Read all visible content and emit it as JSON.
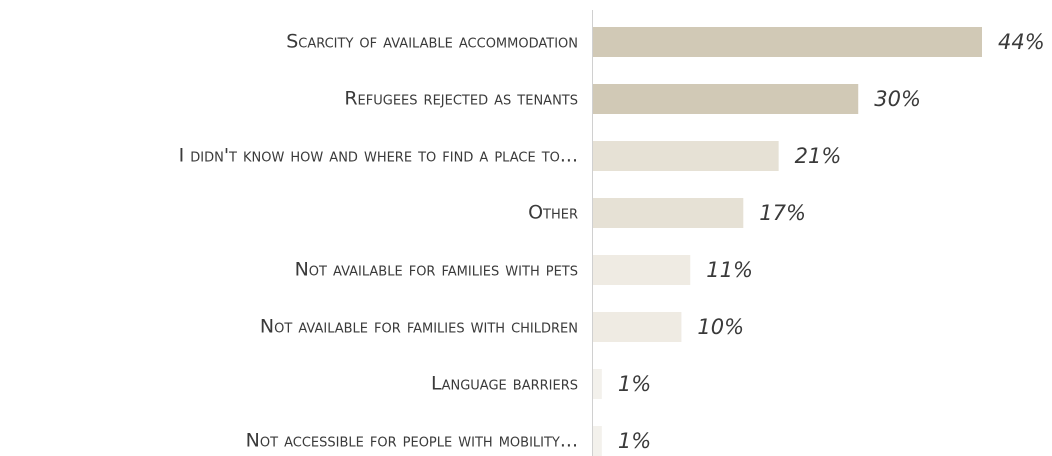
{
  "chart_data": {
    "type": "bar",
    "categories": [
      "Scarcity of available accommodation",
      "Refugees rejected as tenants",
      "I didn't know how and where to find a place to...",
      "Other",
      "Not available for families with pets",
      "Not available for families with children",
      "Language barriers",
      "Not accessible for people with mobility..."
    ],
    "values": [
      44,
      30,
      21,
      17,
      11,
      10,
      1,
      1
    ],
    "value_labels": [
      "44%",
      "30%",
      "21%",
      "17%",
      "11%",
      "10%",
      "1%",
      "1%"
    ],
    "colors": [
      "#d1c9b6",
      "#d1c9b6",
      "#e6e1d5",
      "#e6e1d5",
      "#efebe3",
      "#efebe3",
      "#f3f1ec",
      "#f3f1ec"
    ]
  }
}
